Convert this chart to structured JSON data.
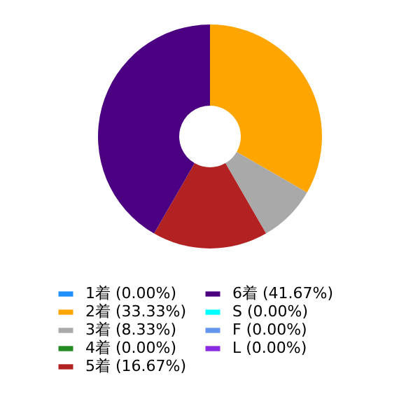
{
  "chart_data": {
    "type": "donut",
    "categories": [
      "1着 (0.00%)",
      "2着 (33.33%)",
      "3着 (8.33%)",
      "4着 (0.00%)",
      "5着 (16.67%)",
      "6着 (41.67%)",
      "S (0.00%)",
      "F (0.00%)",
      "L (0.00%)"
    ],
    "values": [
      0,
      33.33,
      8.33,
      0,
      16.67,
      41.67,
      0,
      0,
      0
    ],
    "colors": [
      "#1e90ff",
      "#ffa500",
      "#a9a9a9",
      "#228b22",
      "#b22222",
      "#4b0082",
      "#00ffff",
      "#6495ed",
      "#8a2be2"
    ],
    "legend": "bottom"
  }
}
